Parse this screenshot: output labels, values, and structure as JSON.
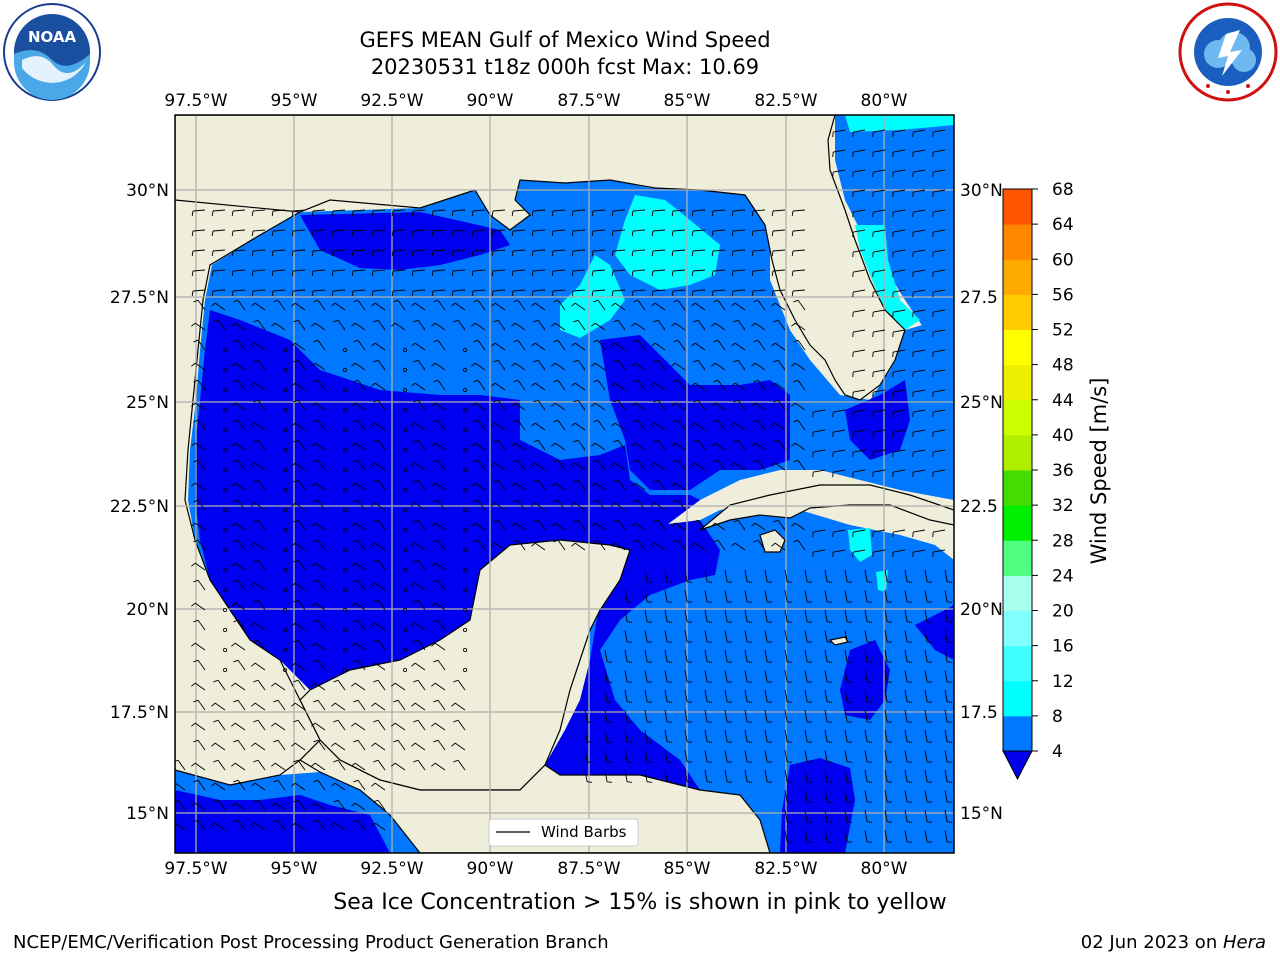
{
  "title_line1": "GEFS MEAN Gulf of Mexico Wind Speed",
  "title_line2": "20230531 t18z 000h fcst   Max: 10.69",
  "subtitle": "Sea Ice Concentration > 15% is shown in pink to yellow",
  "footer_left": "NCEP/EMC/Verification Post Processing Product Generation Branch",
  "footer_date": "02 Jun 2023 on ",
  "footer_host": "Hera",
  "legend_label": "Wind Barbs",
  "colorbar_label": "Wind Speed [m/s]",
  "logos": {
    "left_text": "NOAA",
    "left_icon": "noaa-logo-icon",
    "right_icon": "nws-logo-icon"
  },
  "map": {
    "lon_ticks": [
      "97.5°W",
      "95°W",
      "92.5°W",
      "90°W",
      "87.5°W",
      "85°W",
      "82.5°W",
      "80°W"
    ],
    "lat_ticks_left": [
      "30°N",
      "27.5°N",
      "25°N",
      "22.5°N",
      "20°N",
      "17.5°N",
      "15°N"
    ],
    "lat_ticks_right": [
      "30°N",
      "27.5",
      "25°N",
      "22.5",
      "20°N",
      "17.5",
      "15°N"
    ],
    "land_color": "#efeedb",
    "ocean_colors": [
      "#0000f0",
      "#0078ff",
      "#00ffff"
    ]
  },
  "colorbar": {
    "ticks": [
      "4",
      "8",
      "12",
      "16",
      "20",
      "24",
      "28",
      "32",
      "36",
      "40",
      "44",
      "48",
      "52",
      "56",
      "60",
      "64",
      "68"
    ],
    "colors": [
      "#0078ff",
      "#00ffff",
      "#40ffff",
      "#80ffff",
      "#a8ffee",
      "#50ff80",
      "#00ee00",
      "#44dd00",
      "#b0ee00",
      "#ccff00",
      "#eeee00",
      "#ffff00",
      "#ffcc00",
      "#ffaa00",
      "#ff8800",
      "#ff5500",
      "#ff2200",
      "#ff0000"
    ],
    "extend_color": "#0000ee"
  }
}
